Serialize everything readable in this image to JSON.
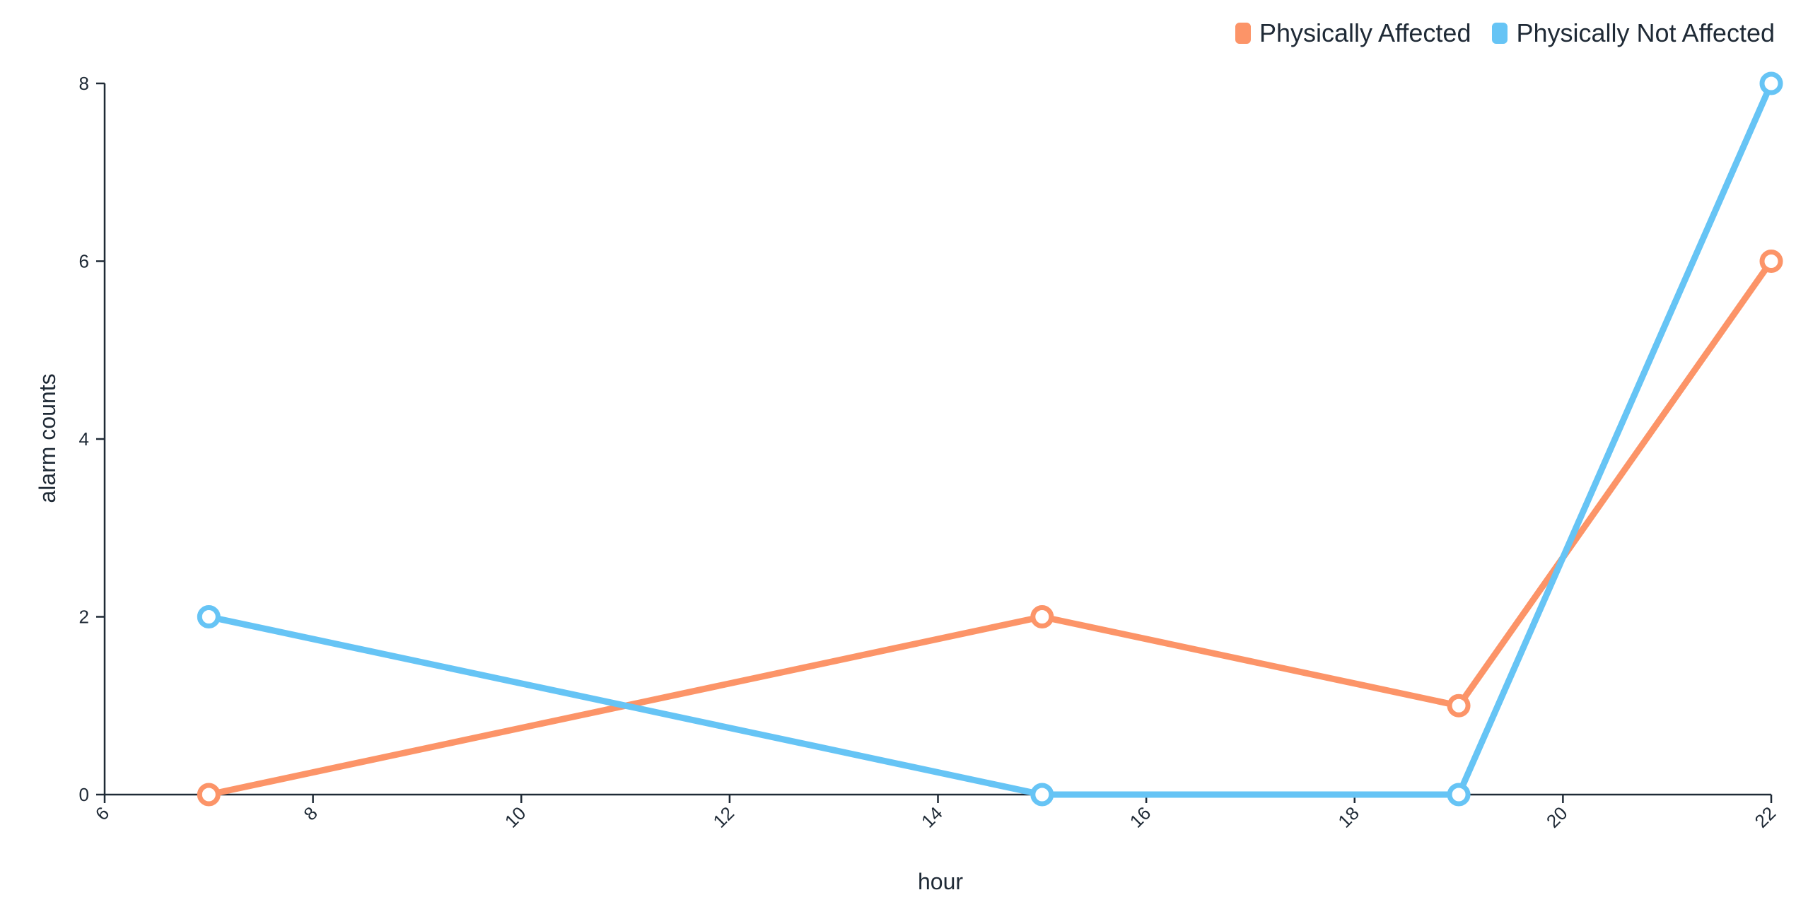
{
  "chart_data": {
    "type": "line",
    "xlabel": "hour",
    "ylabel": "alarm counts",
    "xlim": [
      6,
      22
    ],
    "ylim": [
      0,
      8
    ],
    "xticks": [
      6,
      8,
      10,
      12,
      14,
      16,
      18,
      20,
      22
    ],
    "yticks": [
      0,
      2,
      4,
      6,
      8
    ],
    "legend_position": "top-right",
    "series": [
      {
        "name": "Physically Affected",
        "color": "#fc9468",
        "points": [
          {
            "x": 7,
            "y": 0
          },
          {
            "x": 15,
            "y": 2
          },
          {
            "x": 19,
            "y": 1
          },
          {
            "x": 22,
            "y": 6
          }
        ]
      },
      {
        "name": "Physically Not Affected",
        "color": "#66c4f5",
        "points": [
          {
            "x": 7,
            "y": 2
          },
          {
            "x": 15,
            "y": 0
          },
          {
            "x": 19,
            "y": 0
          },
          {
            "x": 22,
            "y": 8
          }
        ]
      }
    ]
  }
}
